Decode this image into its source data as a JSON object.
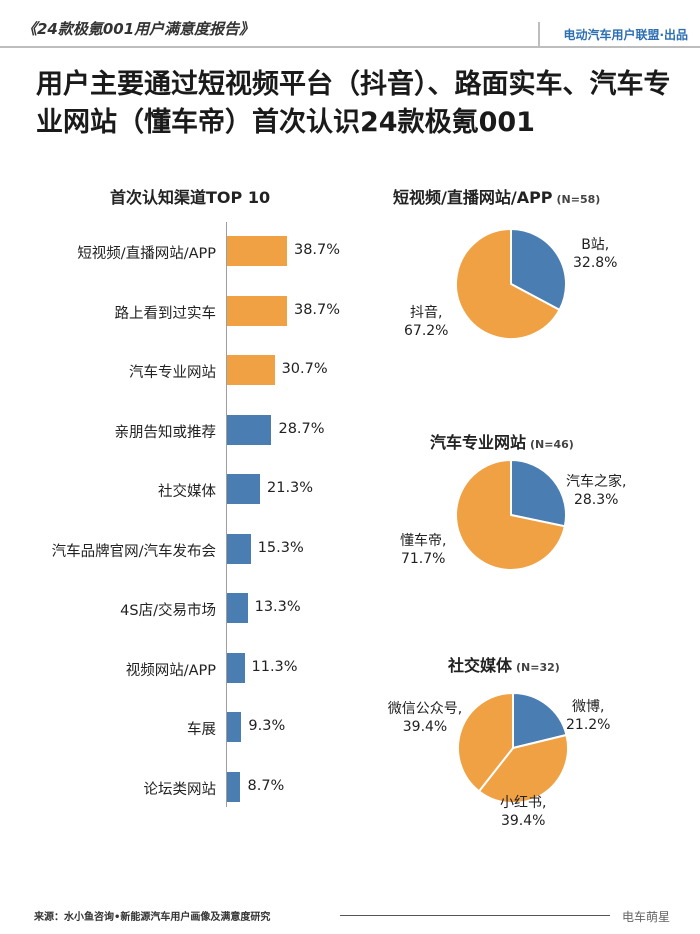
{
  "header": {
    "report_title": "《24款极氪001用户满意度报告》",
    "brand": "电动汽车用户联盟·出品"
  },
  "headline": "用户主要通过短视频平台（抖音）、路面实车、汽车专业网站（懂车帝）首次认识24款极氪001",
  "colors": {
    "orange": "#f0a143",
    "blue": "#4a7db1"
  },
  "bar_chart": {
    "title": "首次认知渠道TOP 10",
    "chart_data": {
      "type": "bar",
      "orientation": "horizontal",
      "categories": [
        "短视频/直播网站/APP",
        "路上看到过实车",
        "汽车专业网站",
        "亲朋告知或推荐",
        "社交媒体",
        "汽车品牌官网/汽车发布会",
        "4S店/交易市场",
        "视频网站/APP",
        "车展",
        "论坛类网站"
      ],
      "values": [
        38.7,
        38.7,
        30.7,
        28.7,
        21.3,
        15.3,
        13.3,
        11.3,
        9.3,
        8.7
      ],
      "value_labels": [
        "38.7%",
        "38.7%",
        "30.7%",
        "28.7%",
        "21.3%",
        "15.3%",
        "13.3%",
        "11.3%",
        "9.3%",
        "8.7%"
      ],
      "bar_colors": [
        "orange",
        "orange",
        "orange",
        "blue",
        "blue",
        "blue",
        "blue",
        "blue",
        "blue",
        "blue"
      ],
      "unit": "%"
    }
  },
  "pies": [
    {
      "title": "短视频/直播网站/APP",
      "n": "(N=58)",
      "chart_data": {
        "type": "pie",
        "slices": [
          {
            "label": "B站,",
            "value_label": "32.8%",
            "value": 32.8,
            "color": "blue"
          },
          {
            "label": "抖音,",
            "value_label": "67.2%",
            "value": 67.2,
            "color": "orange"
          }
        ]
      }
    },
    {
      "title": "汽车专业网站",
      "n": "(N=46)",
      "chart_data": {
        "type": "pie",
        "slices": [
          {
            "label": "汽车之家,",
            "value_label": "28.3%",
            "value": 28.3,
            "color": "blue"
          },
          {
            "label": "懂车帝,",
            "value_label": "71.7%",
            "value": 71.7,
            "color": "orange"
          }
        ]
      }
    },
    {
      "title": "社交媒体",
      "n": "(N=32)",
      "chart_data": {
        "type": "pie",
        "slices": [
          {
            "label": "微博,",
            "value_label": "21.2%",
            "value": 21.2,
            "color": "blue"
          },
          {
            "label": "小红书,",
            "value_label": "39.4%",
            "value": 39.4,
            "color": "orange"
          },
          {
            "label": "微信公众号,",
            "value_label": "39.4%",
            "value": 39.4,
            "color": "orange"
          }
        ]
      }
    }
  ],
  "footer": {
    "source": "来源：水小鱼咨询•新能源汽车用户画像及满意度研究",
    "watermark": "电车萌星"
  }
}
